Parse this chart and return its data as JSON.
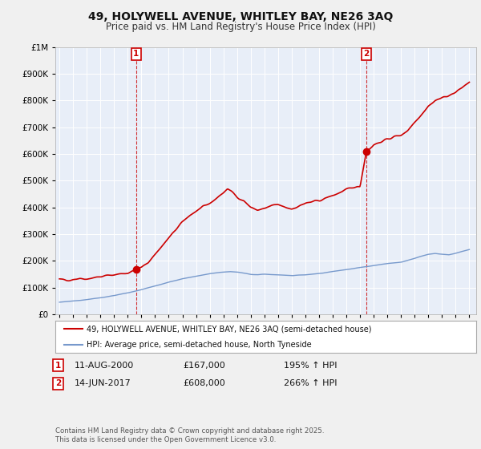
{
  "title": "49, HOLYWELL AVENUE, WHITLEY BAY, NE26 3AQ",
  "subtitle": "Price paid vs. HM Land Registry's House Price Index (HPI)",
  "legend_line1": "49, HOLYWELL AVENUE, WHITLEY BAY, NE26 3AQ (semi-detached house)",
  "legend_line2": "HPI: Average price, semi-detached house, North Tyneside",
  "footnote": "Contains HM Land Registry data © Crown copyright and database right 2025.\nThis data is licensed under the Open Government Licence v3.0.",
  "sale1_date": "11-AUG-2000",
  "sale1_price": "£167,000",
  "sale1_hpi": "195% ↑ HPI",
  "sale1_year": 2000.62,
  "sale1_value": 167000,
  "sale2_date": "14-JUN-2017",
  "sale2_price": "£608,000",
  "sale2_hpi": "266% ↑ HPI",
  "sale2_year": 2017.45,
  "sale2_value": 608000,
  "ylim": [
    0,
    1000000
  ],
  "xlim_start": 1994.7,
  "xlim_end": 2025.5,
  "red_color": "#cc0000",
  "blue_color": "#7799cc",
  "chart_bg": "#e8eef8",
  "grid_color": "#ffffff",
  "bg_color": "#f0f0f0",
  "outer_bg": "#f0f0f0"
}
